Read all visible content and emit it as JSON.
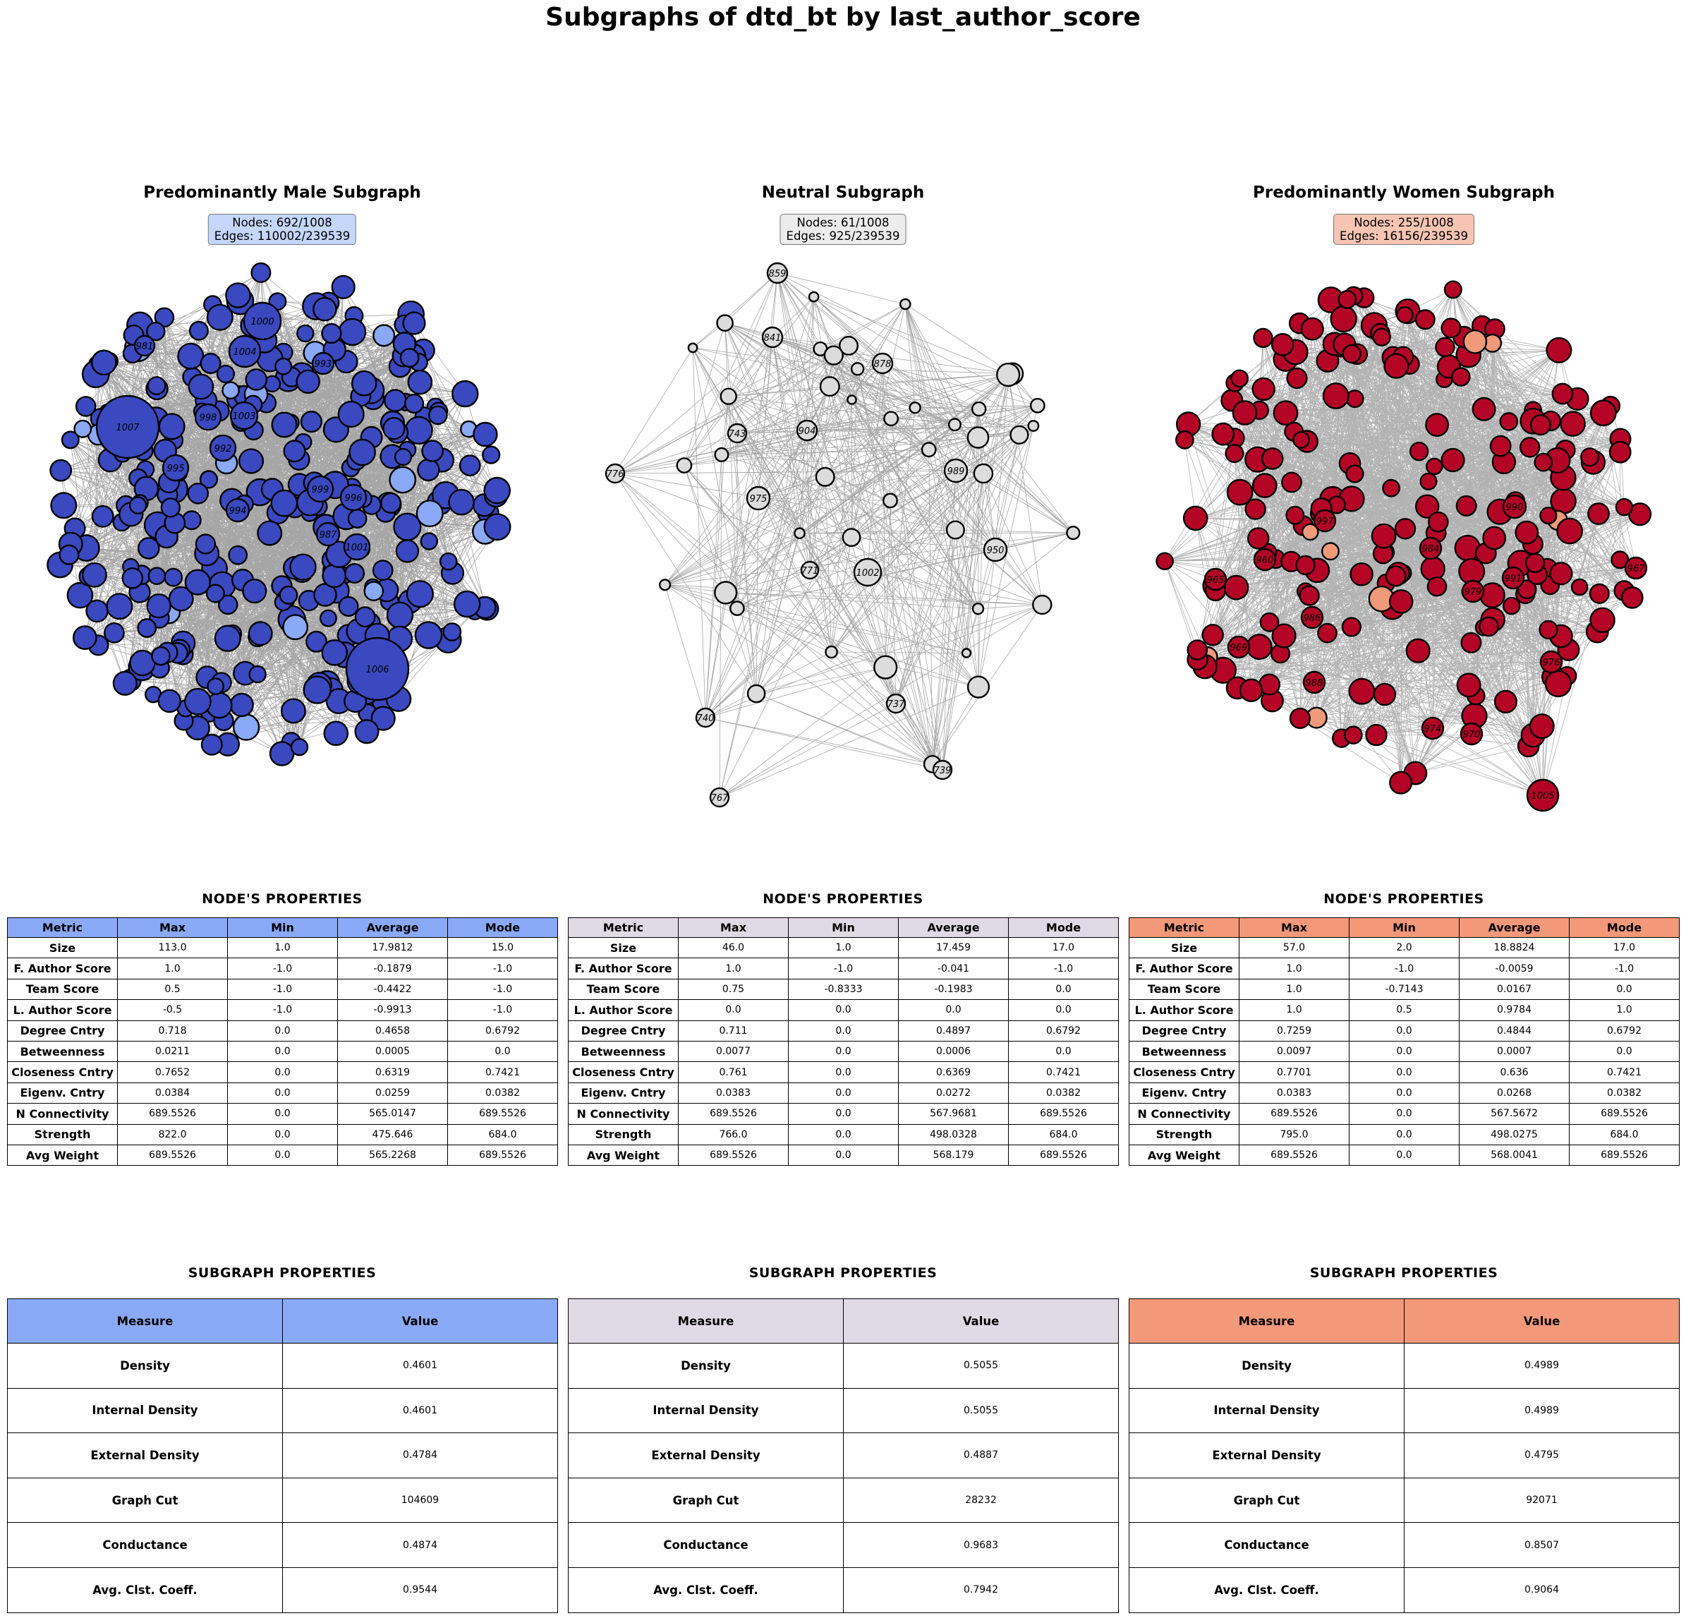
{
  "title": "Subgraphs of dtd_bt by last_author_score",
  "section_titles": {
    "node_properties": "NODE'S  PROPERTIES",
    "subgraph_properties": "SUBGRAPH  PROPERTIES"
  },
  "node_table_headers": [
    "Metric",
    "Max",
    "Min",
    "Average",
    "Mode"
  ],
  "subgraph_table_headers": [
    "Measure",
    "Value"
  ],
  "panels": [
    {
      "key": "male",
      "title": "Predominantly Male Subgraph",
      "nodes_text": "Nodes: 692/1008",
      "edges_text": "Edges: 110002/239539",
      "colors": {
        "node": "#3a49c0",
        "node_light": "#8aa9f7",
        "header": "#8aa9f7",
        "box": "#c5d6fa"
      },
      "node_labels": [
        "1000",
        "1004",
        "981",
        "993",
        "1007",
        "998",
        "1003",
        "992",
        "995",
        "999",
        "996",
        "994",
        "987",
        "1001",
        "1006"
      ],
      "node_properties": [
        [
          "Size",
          "113.0",
          "1.0",
          "17.9812",
          "15.0"
        ],
        [
          "F. Author Score",
          "1.0",
          "-1.0",
          "-0.1879",
          "-1.0"
        ],
        [
          "Team Score",
          "0.5",
          "-1.0",
          "-0.4422",
          "-1.0"
        ],
        [
          "L. Author Score",
          "-0.5",
          "-1.0",
          "-0.9913",
          "-1.0"
        ],
        [
          "Degree Cntry",
          "0.718",
          "0.0",
          "0.4658",
          "0.6792"
        ],
        [
          "Betweenness",
          "0.0211",
          "0.0",
          "0.0005",
          "0.0"
        ],
        [
          "Closeness Cntry",
          "0.7652",
          "0.0",
          "0.6319",
          "0.7421"
        ],
        [
          "Eigenv. Cntry",
          "0.0384",
          "0.0",
          "0.0259",
          "0.0382"
        ],
        [
          "N Connectivity",
          "689.5526",
          "0.0",
          "565.0147",
          "689.5526"
        ],
        [
          "Strength",
          "822.0",
          "0.0",
          "475.646",
          "684.0"
        ],
        [
          "Avg Weight",
          "689.5526",
          "0.0",
          "565.2268",
          "689.5526"
        ]
      ],
      "subgraph_properties": [
        [
          "Density",
          "0.4601"
        ],
        [
          "Internal Density",
          "0.4601"
        ],
        [
          "External Density",
          "0.4784"
        ],
        [
          "Graph Cut",
          "104609"
        ],
        [
          "Conductance",
          "0.4874"
        ],
        [
          "Avg. Clst. Coeff.",
          "0.9544"
        ]
      ]
    },
    {
      "key": "neutral",
      "title": "Neutral Subgraph",
      "nodes_text": "Nodes: 61/1008",
      "edges_text": "Edges: 925/239539",
      "colors": {
        "node": "#dcdcdc",
        "node_light": "#dcdcdc",
        "header": "#e0d9e6",
        "box": "#ececec"
      },
      "node_labels": [
        "859",
        "841",
        "878",
        "743",
        "904",
        "776",
        "989",
        "975",
        "950",
        "771",
        "1002",
        "740",
        "737",
        "739",
        "767"
      ],
      "node_properties": [
        [
          "Size",
          "46.0",
          "1.0",
          "17.459",
          "17.0"
        ],
        [
          "F. Author Score",
          "1.0",
          "-1.0",
          "-0.041",
          "-1.0"
        ],
        [
          "Team Score",
          "0.75",
          "-0.8333",
          "-0.1983",
          "0.0"
        ],
        [
          "L. Author Score",
          "0.0",
          "0.0",
          "0.0",
          "0.0"
        ],
        [
          "Degree Cntry",
          "0.711",
          "0.0",
          "0.4897",
          "0.6792"
        ],
        [
          "Betweenness",
          "0.0077",
          "0.0",
          "0.0006",
          "0.0"
        ],
        [
          "Closeness Cntry",
          "0.761",
          "0.0",
          "0.6369",
          "0.7421"
        ],
        [
          "Eigenv. Cntry",
          "0.0383",
          "0.0",
          "0.0272",
          "0.0382"
        ],
        [
          "N Connectivity",
          "689.5526",
          "0.0",
          "567.9681",
          "689.5526"
        ],
        [
          "Strength",
          "766.0",
          "0.0",
          "498.0328",
          "684.0"
        ],
        [
          "Avg Weight",
          "689.5526",
          "0.0",
          "568.179",
          "689.5526"
        ]
      ],
      "subgraph_properties": [
        [
          "Density",
          "0.5055"
        ],
        [
          "Internal Density",
          "0.5055"
        ],
        [
          "External Density",
          "0.4887"
        ],
        [
          "Graph Cut",
          "28232"
        ],
        [
          "Conductance",
          "0.9683"
        ],
        [
          "Avg. Clst. Coeff.",
          "0.7942"
        ]
      ]
    },
    {
      "key": "women",
      "title": "Predominantly Women Subgraph",
      "nodes_text": "Nodes: 255/1008",
      "edges_text": "Edges: 16156/239539",
      "colors": {
        "node": "#b40426",
        "node_light": "#f09a7a",
        "header": "#f4987a",
        "box": "#f7c4b4"
      },
      "node_labels": [
        "990",
        "997",
        "984",
        "960",
        "967",
        "965",
        "991",
        "979",
        "986",
        "969",
        "976",
        "988",
        "974",
        "970",
        "1005"
      ],
      "node_properties": [
        [
          "Size",
          "57.0",
          "2.0",
          "18.8824",
          "17.0"
        ],
        [
          "F. Author Score",
          "1.0",
          "-1.0",
          "-0.0059",
          "-1.0"
        ],
        [
          "Team Score",
          "1.0",
          "-0.7143",
          "0.0167",
          "0.0"
        ],
        [
          "L. Author Score",
          "1.0",
          "0.5",
          "0.9784",
          "1.0"
        ],
        [
          "Degree Cntry",
          "0.7259",
          "0.0",
          "0.4844",
          "0.6792"
        ],
        [
          "Betweenness",
          "0.0097",
          "0.0",
          "0.0007",
          "0.0"
        ],
        [
          "Closeness Cntry",
          "0.7701",
          "0.0",
          "0.636",
          "0.7421"
        ],
        [
          "Eigenv. Cntry",
          "0.0383",
          "0.0",
          "0.0268",
          "0.0382"
        ],
        [
          "N Connectivity",
          "689.5526",
          "0.0",
          "567.5672",
          "689.5526"
        ],
        [
          "Strength",
          "795.0",
          "0.0",
          "498.0275",
          "684.0"
        ],
        [
          "Avg Weight",
          "689.5526",
          "0.0",
          "568.0041",
          "689.5526"
        ]
      ],
      "subgraph_properties": [
        [
          "Density",
          "0.4989"
        ],
        [
          "Internal Density",
          "0.4989"
        ],
        [
          "External Density",
          "0.4795"
        ],
        [
          "Graph Cut",
          "92071"
        ],
        [
          "Conductance",
          "0.8507"
        ],
        [
          "Avg. Clst. Coeff.",
          "0.9064"
        ]
      ]
    }
  ]
}
